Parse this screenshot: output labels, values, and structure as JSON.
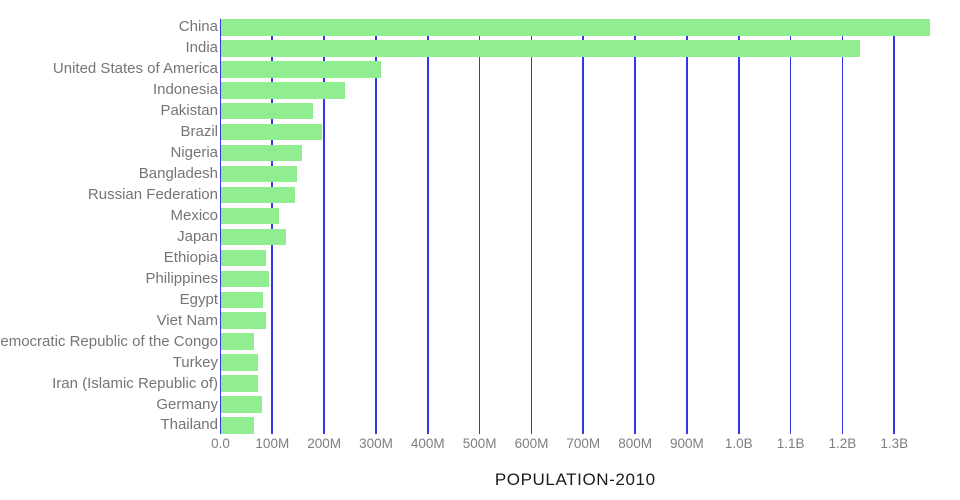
{
  "chart_data": {
    "type": "bar",
    "orientation": "horizontal",
    "title": "POPULATION-2010",
    "unit": "people",
    "categories": [
      "China",
      "India",
      "United States of America",
      "Indonesia",
      "Pakistan",
      "Brazil",
      "Nigeria",
      "Bangladesh",
      "Russian Federation",
      "Mexico",
      "Japan",
      "Ethiopia",
      "Philippines",
      "Egypt",
      "Viet Nam",
      "Democratic Republic of the Congo",
      "Turkey",
      "Iran (Islamic Republic of)",
      "Germany",
      "Thailand"
    ],
    "values_millions": [
      1369,
      1234,
      309,
      241,
      179,
      195,
      158,
      147,
      143,
      113,
      127,
      87,
      94,
      82,
      88,
      64,
      72,
      73,
      80,
      65
    ],
    "xlim_millions": [
      0,
      1369
    ],
    "grid": true,
    "legend": false,
    "x_ticks": [
      {
        "label": "0.0",
        "value_millions": 0
      },
      {
        "label": "100M",
        "value_millions": 100
      },
      {
        "label": "200M",
        "value_millions": 200
      },
      {
        "label": "300M",
        "value_millions": 300
      },
      {
        "label": "400M",
        "value_millions": 400
      },
      {
        "label": "500M",
        "value_millions": 500
      },
      {
        "label": "600M",
        "value_millions": 600
      },
      {
        "label": "700M",
        "value_millions": 700
      },
      {
        "label": "800M",
        "value_millions": 800
      },
      {
        "label": "900M",
        "value_millions": 900
      },
      {
        "label": "1.0B",
        "value_millions": 1000
      },
      {
        "label": "1.1B",
        "value_millions": 1100
      },
      {
        "label": "1.2B",
        "value_millions": 1200
      },
      {
        "label": "1.3B",
        "value_millions": 1300
      }
    ]
  },
  "colors": {
    "background": "#FFFFFF",
    "bar": "#90EE90",
    "gridline": "#3535EA",
    "country_label": "#757575",
    "tick_label": "#7E7E7E",
    "title": "#1B1B1B"
  }
}
